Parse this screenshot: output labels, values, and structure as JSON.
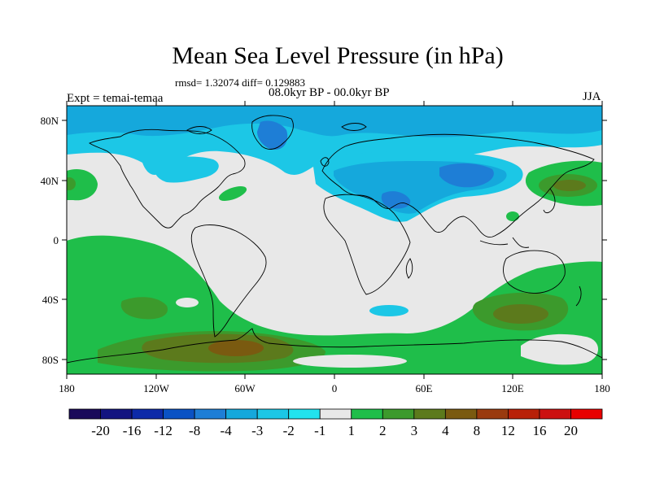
{
  "title": "Mean Sea Level Pressure (in hPa)",
  "stats_text": "rmsd= 1.32074 diff= 0.129883",
  "period_text": "08.0kyr BP - 00.0kyr BP",
  "experiment_text": "Expt = temai-temaa",
  "season_text": "JJA",
  "lat_labels": [
    "80N",
    "40N",
    "0",
    "40S",
    "80S"
  ],
  "lon_labels": [
    "180",
    "120W",
    "60W",
    "0",
    "60E",
    "120E",
    "180"
  ],
  "colorbar": {
    "labels": [
      "-20",
      "-16",
      "-12",
      "-8",
      "-4",
      "-3",
      "-2",
      "-1",
      "1",
      "2",
      "3",
      "4",
      "8",
      "12",
      "16",
      "20"
    ],
    "colors": [
      "#1a0a5a",
      "#131480",
      "#0d2aa8",
      "#0a52c4",
      "#1e7ed6",
      "#15a8dc",
      "#1cc7e6",
      "#22e3ee",
      "#e8e8e8",
      "#1fbe4a",
      "#3c9a2c",
      "#5c7a1c",
      "#7a5a10",
      "#9a3a0e",
      "#b82008",
      "#cc1010",
      "#e80000"
    ]
  },
  "chart_data": {
    "type": "heatmap",
    "title": "Mean Sea Level Pressure (in hPa)",
    "variable": "Mean Sea Level Pressure difference",
    "units": "hPa",
    "experiment": "temai-temaa",
    "period": "08.0kyr BP - 00.0kyr BP",
    "season": "JJA",
    "rmsd": 1.32074,
    "diff": 0.129883,
    "lon_range": [
      -180,
      180
    ],
    "lat_range": [
      -90,
      90
    ],
    "color_levels": [
      -20,
      -16,
      -12,
      -8,
      -4,
      -3,
      -2,
      -1,
      1,
      2,
      3,
      4,
      8,
      12,
      16,
      20
    ]
  }
}
